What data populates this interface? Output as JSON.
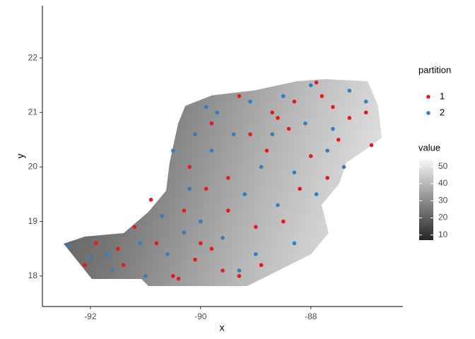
{
  "chart_data": {
    "type": "scatter",
    "x_label": "x",
    "y_label": "y",
    "xlim": [
      -92.87,
      -86.33
    ],
    "ylim": [
      17.44,
      22.96
    ],
    "xticks": [
      -92,
      -90,
      -88
    ],
    "yticks": [
      18,
      19,
      20,
      21,
      22
    ],
    "legend_title": "partition",
    "series": [
      {
        "name": "1",
        "color": "#E41A1C",
        "x": [
          -87.9,
          -87.6,
          -87.3,
          -87.0,
          -86.9,
          -87.5,
          -88.3,
          -88.6,
          -89.3,
          -89.8,
          -90.2,
          -89.9,
          -89.5,
          -89.0,
          -89.8,
          -90.1,
          -90.5,
          -90.8,
          -91.2,
          -91.5,
          -91.9,
          -92.1,
          -89.3,
          -88.9,
          -88.5,
          -88.2,
          -88.8,
          -88.0,
          -87.7,
          -89.5,
          -90.3,
          -90.9,
          -89.1,
          -88.4,
          -87.8,
          -90.0,
          -89.6,
          -90.4,
          -91.4,
          -88.7
        ],
        "values": [
          21.55,
          21.1,
          20.9,
          21.0,
          20.4,
          20.5,
          21.2,
          20.9,
          21.3,
          20.8,
          20.0,
          19.6,
          19.2,
          18.9,
          18.5,
          18.3,
          18.0,
          18.6,
          18.9,
          18.5,
          18.6,
          18.2,
          18.0,
          18.2,
          19.0,
          19.6,
          20.3,
          20.2,
          19.8,
          19.8,
          19.2,
          19.4,
          20.6,
          20.7,
          21.3,
          18.6,
          18.1,
          17.95,
          18.2,
          21.0
        ]
      },
      {
        "name": "2",
        "color": "#377EB8",
        "x": [
          -92.4,
          -92.0,
          -91.6,
          -91.0,
          -90.6,
          -90.0,
          -89.6,
          -89.2,
          -89.8,
          -90.1,
          -89.7,
          -89.4,
          -89.1,
          -88.5,
          -88.1,
          -87.6,
          -87.3,
          -87.0,
          -87.7,
          -88.3,
          -88.6,
          -88.3,
          -89.0,
          -90.3,
          -90.7,
          -91.1,
          -90.5,
          -90.2,
          -88.9,
          -87.9,
          -88.7,
          -89.9,
          -89.3,
          -91.7,
          -88.0,
          -87.4
        ],
        "values": [
          18.55,
          18.3,
          18.1,
          18.0,
          18.4,
          19.0,
          18.7,
          19.5,
          20.3,
          20.6,
          21.0,
          20.6,
          21.2,
          21.3,
          20.8,
          20.7,
          21.4,
          21.2,
          20.3,
          19.9,
          19.3,
          18.6,
          18.4,
          18.8,
          19.1,
          18.6,
          20.3,
          19.6,
          20.0,
          19.5,
          20.6,
          21.1,
          18.1,
          18.4,
          21.5,
          20.0
        ]
      }
    ],
    "color_scale": {
      "title": "value",
      "lim": [
        7,
        54
      ],
      "ticks": [
        10,
        20,
        30,
        40,
        50
      ],
      "colors": [
        "#262626",
        "#f7f7f7"
      ]
    }
  }
}
